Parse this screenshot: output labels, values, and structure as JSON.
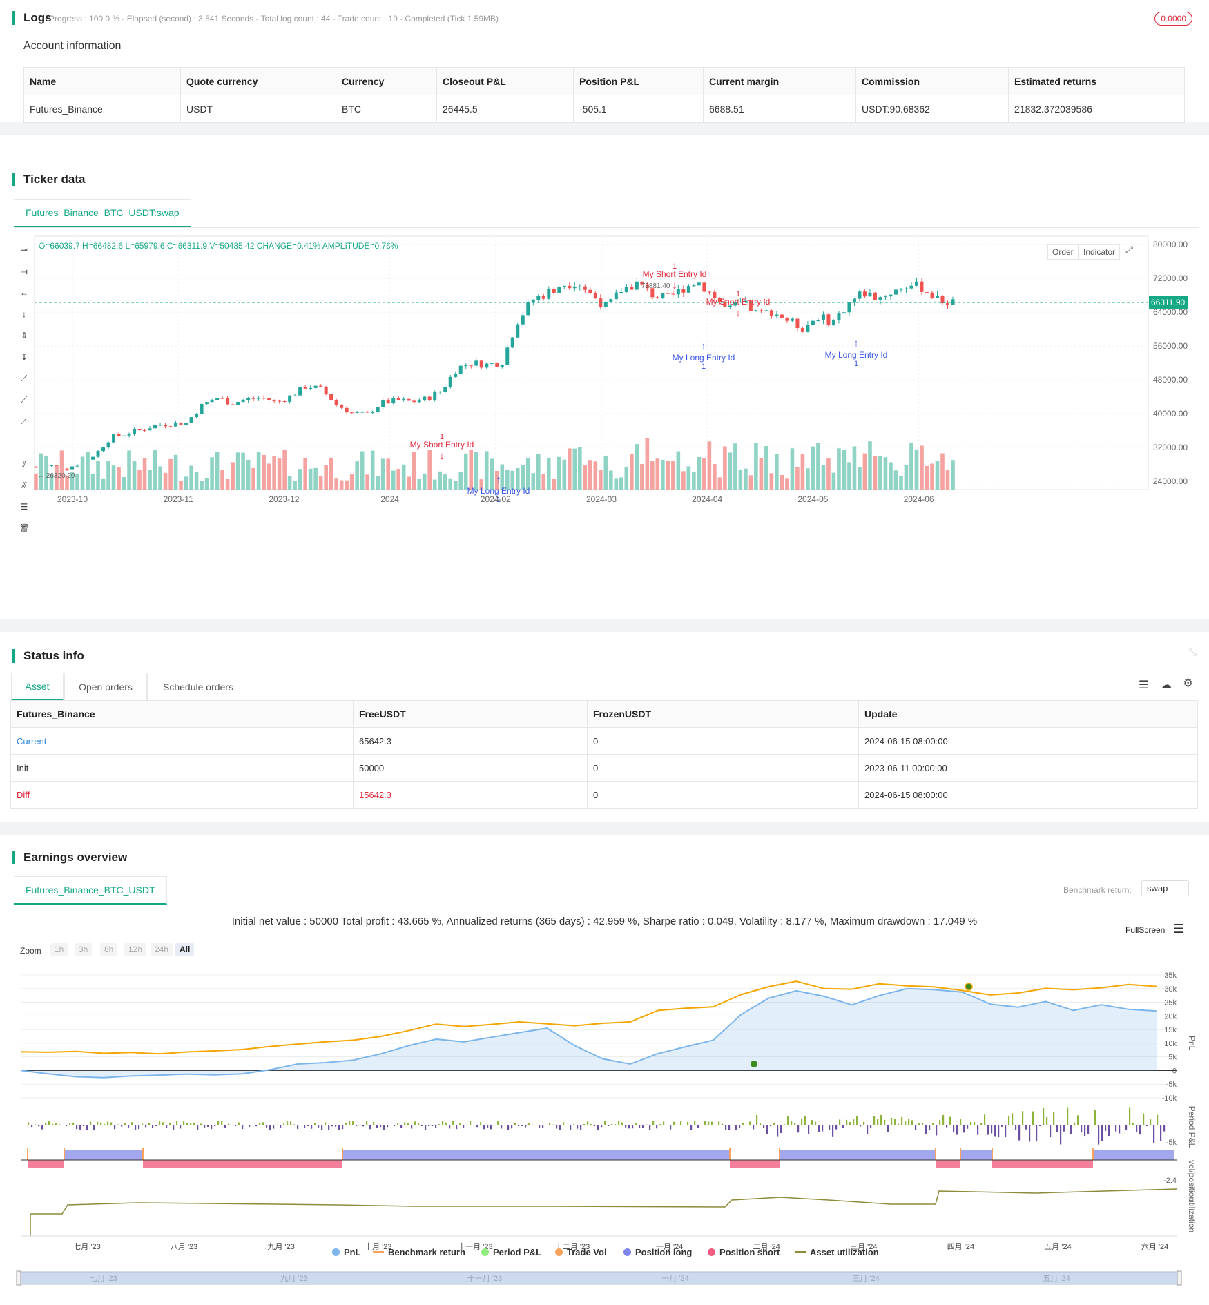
{
  "logs": {
    "title": "Logs",
    "progress_text": "Progress : 100.0 % - Elapsed (second) : 3.541  Seconds - Total log count : 44 - Trade count : 19 - Completed (Tick 1.59MB)",
    "badge": "0.0000"
  },
  "account": {
    "title": "Account information",
    "columns": [
      "Name",
      "Quote currency",
      "Currency",
      "Closeout P&L",
      "Position P&L",
      "Current margin",
      "Commission",
      "Estimated returns"
    ],
    "row": [
      "Futures_Binance",
      "USDT",
      "BTC",
      "26445.5",
      "-505.1",
      "6688.51",
      "USDT:90.68362",
      "21832.372039586"
    ]
  },
  "ticker": {
    "title": "Ticker data",
    "tab": "Futures_Binance_BTC_USDT:swap",
    "ohlc": "O=66039.7 H=66482.6 L=65979.6 C=66311.9 V=50485.42 CHANGE=0.41% AMPLITUDE=0.76%",
    "btn_order": "Order",
    "btn_indicator": "Indicator",
    "price_label": "66311.90",
    "high_label": "73881.40",
    "low_label": "26320.20",
    "annotations": {
      "short_entry": "My Short Entry Id",
      "long_entry": "My Long Entry Id",
      "qty": "1"
    }
  },
  "status": {
    "title": "Status info",
    "tabs": [
      "Asset",
      "Open orders",
      "Schedule orders"
    ],
    "columns": [
      "Futures_Binance",
      "FreeUSDT",
      "FrozenUSDT",
      "Update"
    ],
    "rows": [
      [
        "Current",
        "65642.3",
        "0",
        "2024-06-15 08:00:00"
      ],
      [
        "Init",
        "50000",
        "0",
        "2023-06-11 00:00:00"
      ],
      [
        "Diff",
        "15642.3",
        "0",
        "2024-06-15 08:00:00"
      ]
    ]
  },
  "earnings": {
    "title": "Earnings overview",
    "tab": "Futures_Binance_BTC_USDT",
    "benchmark_label": "Benchmark return:",
    "benchmark_value": "swap",
    "summary": "Initial net value : 50000 Total profit : 43.665 %, Annualized returns (365 days) : 42.959 %, Sharpe ratio : 0.049, Volatility : 8.177 %, Maximum drawdown : 17.049 %",
    "fullscreen": "FullScreen",
    "zoom_label": "Zoom",
    "zoom_buttons": [
      "1h",
      "3h",
      "8h",
      "12h",
      "24h",
      "All"
    ],
    "axis_pnl": "PnL",
    "axis_period": "Period P&L",
    "axis_position": "vol/position",
    "axis_util": "utilization",
    "pnl_ticks": [
      "35k",
      "30k",
      "25k",
      "20k",
      "15k",
      "10k",
      "5k",
      "0",
      "-5k",
      "-10k"
    ],
    "period_tick": "-5k",
    "position_tick": "-2.4",
    "x_ticks": [
      "七月 '23",
      "八月 '23",
      "九月 '23",
      "十月 '23",
      "十一月 '23",
      "十二月 '23",
      "一月 '24",
      "二月 '24",
      "三月 '24",
      "四月 '24",
      "五月 '24",
      "六月 '24"
    ],
    "navigator_ticks": [
      "七月 '23",
      "九月 '23",
      "十一月 '23",
      "一月 '24",
      "三月 '24",
      "五月 '24"
    ],
    "legend": [
      {
        "label": "PnL",
        "color": "#7cb5ec"
      },
      {
        "label": "Benchmark return",
        "color": "#f7a35c"
      },
      {
        "label": "Period P&L",
        "color": "#90ed7d"
      },
      {
        "label": "Trade Vol",
        "color": "#f7a35c"
      },
      {
        "label": "Position long",
        "color": "#8085e9"
      },
      {
        "label": "Position short",
        "color": "#f15c80"
      },
      {
        "label": "Asset utilization",
        "color": "#8d8a3a"
      }
    ]
  },
  "chart_data": [
    {
      "type": "candlestick",
      "title": "Futures_Binance_BTC_USDT:swap",
      "x_ticks": [
        "2023-10",
        "2023-11",
        "2023-12",
        "2024",
        "2024-02",
        "2024-03",
        "2024-04",
        "2024-05",
        "2024-06"
      ],
      "y_ticks": [
        "80000.00",
        "72000.00",
        "64000.00",
        "56000.00",
        "48000.00",
        "40000.00",
        "32000.00",
        "24000.00"
      ],
      "ylim": [
        22000,
        82000
      ],
      "close_series": [
        27300,
        27600,
        27100,
        28200,
        30500,
        34400,
        35200,
        36100,
        37300,
        37600,
        37800,
        41800,
        43800,
        42500,
        43300,
        43800,
        42600,
        44200,
        46600,
        45700,
        42100,
        40200,
        39700,
        42500,
        43100,
        42800,
        43500,
        45500,
        50800,
        52000,
        51600,
        52100,
        61700,
        66800,
        68500,
        70600,
        71200,
        68000,
        65200,
        69500,
        70800,
        68200,
        67100,
        69600,
        71400,
        68100,
        64400,
        66200,
        63500,
        64200,
        62100,
        60200,
        63000,
        61600,
        65800,
        68700,
        67400,
        68900,
        70500,
        69800,
        66900,
        66300
      ]
    },
    {
      "type": "line",
      "title": "Earnings overview",
      "x_ticks": [
        "七月 '23",
        "八月 '23",
        "九月 '23",
        "十月 '23",
        "十一月 '23",
        "十二月 '23",
        "一月 '24",
        "二月 '24",
        "三月 '24",
        "四月 '24",
        "五月 '24",
        "六月 '24"
      ],
      "ylim": [
        -10000,
        35000
      ],
      "series": [
        {
          "name": "PnL",
          "values": [
            0,
            -1200,
            -2300,
            -2600,
            -2000,
            -1700,
            -1300,
            -1600,
            -1200,
            300,
            2400,
            2900,
            3800,
            6100,
            9100,
            11500,
            10500,
            12200,
            13900,
            15500,
            9100,
            4300,
            2400,
            6200,
            8700,
            11100,
            20500,
            26500,
            29200,
            27200,
            24000,
            27500,
            30000,
            29600,
            28700,
            24300,
            23200,
            25300,
            22000,
            24100,
            22400,
            21800
          ]
        },
        {
          "name": "Benchmark return",
          "values": [
            6900,
            6700,
            7000,
            6300,
            6600,
            6100,
            6800,
            7200,
            7700,
            8800,
            9700,
            10500,
            11100,
            12500,
            14600,
            17000,
            16100,
            16900,
            17800,
            17100,
            16400,
            17300,
            17800,
            22000,
            22800,
            23300,
            27800,
            30700,
            32700,
            30000,
            29800,
            31800,
            31000,
            30600,
            29300,
            27700,
            28400,
            30100,
            29600,
            30300,
            31500,
            30800
          ]
        }
      ]
    }
  ]
}
